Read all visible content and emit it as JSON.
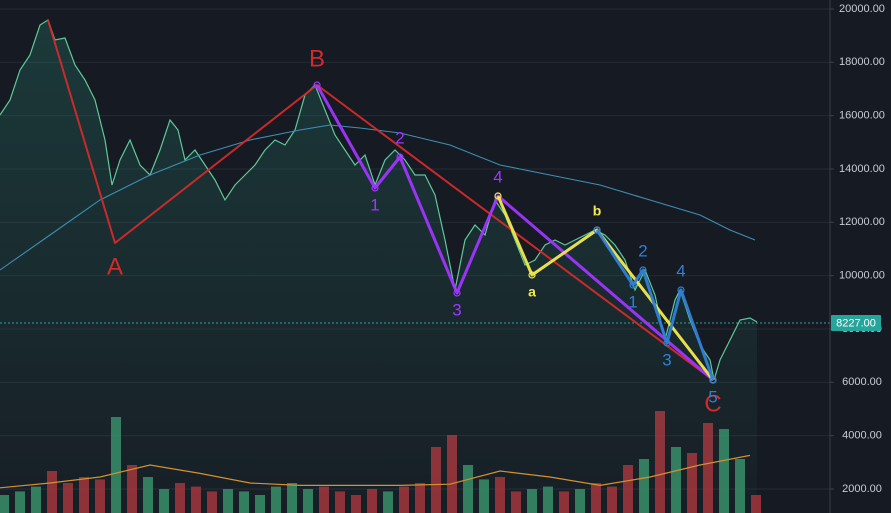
{
  "chart_data": {
    "type": "line",
    "xlim": [
      0,
      830
    ],
    "ylim": [
      2000,
      20000
    ],
    "yticks": [
      {
        "value": 2000,
        "label": "2000.00"
      },
      {
        "value": 4000,
        "label": "4000.00"
      },
      {
        "value": 6000,
        "label": "6000.00"
      },
      {
        "value": 8000,
        "label": "8000.00"
      },
      {
        "value": 10000,
        "label": "10000.00"
      },
      {
        "value": 12000,
        "label": "12000.00"
      },
      {
        "value": 14000,
        "label": "14000.00"
      },
      {
        "value": 16000,
        "label": "16000.00"
      },
      {
        "value": 18000,
        "label": "18000.00"
      },
      {
        "value": 20000,
        "label": "20000.00"
      }
    ],
    "grid": true,
    "last_price": {
      "value": 8227,
      "label": "8227.00",
      "color": "#26a69a"
    },
    "series": [
      {
        "color": "#5fc79a",
        "x": [
          0,
          10,
          20,
          30,
          40,
          48,
          55,
          65,
          75,
          85,
          95,
          105,
          112,
          120,
          130,
          140,
          150,
          160,
          170,
          178,
          185,
          195,
          205,
          215,
          225,
          235,
          245,
          255,
          265,
          275,
          285,
          295,
          305,
          315,
          325,
          335,
          345,
          355,
          365,
          375,
          385,
          395,
          405,
          415,
          425,
          435,
          445,
          455,
          465,
          475,
          485,
          495,
          505,
          515,
          525,
          535,
          545,
          555,
          565,
          575,
          585,
          595,
          605,
          615,
          625,
          635,
          645,
          655,
          665,
          675,
          680,
          690,
          700,
          710,
          714,
          720,
          730,
          740,
          750,
          757
        ],
        "values": [
          16025,
          16588,
          17713,
          18275,
          19400,
          19588,
          18838,
          18913,
          17900,
          17338,
          16588,
          15088,
          13400,
          14338,
          15088,
          14150,
          13775,
          14713,
          15838,
          15463,
          14338,
          14713,
          14150,
          13588,
          12838,
          13400,
          13775,
          14150,
          14713,
          15088,
          14900,
          15463,
          16775,
          17150,
          16213,
          15275,
          14713,
          14150,
          14525,
          13400,
          14338,
          14713,
          14338,
          13775,
          13775,
          13025,
          11338,
          9463,
          11338,
          11900,
          11525,
          12838,
          12275,
          11338,
          10400,
          10588,
          11150,
          11338,
          11150,
          11338,
          11525,
          11713,
          11525,
          11150,
          10588,
          9463,
          10213,
          9275,
          7588,
          9088,
          9463,
          8338,
          7400,
          6838,
          6088,
          6838,
          7588,
          8338,
          8413,
          8263
        ]
      },
      {
        "color": "#3d8fb5",
        "x": [
          0,
          50,
          100,
          150,
          200,
          250,
          300,
          330,
          360,
          400,
          450,
          500,
          550,
          600,
          650,
          700,
          730,
          755
        ],
        "values": [
          10213,
          11525,
          12838,
          13775,
          14525,
          15088,
          15463,
          15650,
          15538,
          15350,
          14900,
          14150,
          13775,
          13400,
          12838,
          12275,
          11713,
          11338
        ]
      }
    ],
    "waves": [
      {
        "color": "#d42a2a",
        "x": [
          48,
          115,
          317,
          713
        ],
        "values": [
          19588,
          11225,
          17150,
          6088
        ],
        "labels": [
          null,
          "A",
          "B",
          "C"
        ]
      },
      {
        "color": "#a035ff",
        "x": [
          317,
          375,
          400,
          457,
          498,
          713
        ],
        "values": [
          17150,
          13288,
          14450,
          9350,
          12988,
          6088
        ],
        "labels": [
          null,
          "1",
          "2",
          "3",
          "4",
          null
        ]
      },
      {
        "color": "#f2e94e",
        "x": [
          498,
          532,
          597,
          713
        ],
        "values": [
          12988,
          10025,
          11713,
          6088
        ],
        "labels": [
          null,
          "a",
          "b",
          null
        ]
      },
      {
        "color": "#2f7fd6",
        "x": [
          597,
          633,
          643,
          667,
          681,
          713
        ],
        "values": [
          11713,
          9650,
          10213,
          7475,
          9463,
          6088
        ],
        "labels": [
          null,
          "1",
          "2",
          "3",
          "4",
          "5"
        ]
      }
    ],
    "volume": {
      "ylim": [
        0,
        100
      ],
      "x": [
        4,
        20,
        36,
        52,
        68,
        84,
        100,
        116,
        132,
        148,
        164,
        180,
        196,
        212,
        228,
        244,
        260,
        276,
        292,
        308,
        324,
        340,
        356,
        372,
        388,
        404,
        420,
        436,
        452,
        468,
        484,
        500,
        516,
        532,
        548,
        564,
        580,
        596,
        612,
        628,
        644,
        660,
        676,
        692,
        708,
        724,
        740,
        756
      ],
      "values": [
        15,
        18,
        22,
        35,
        25,
        30,
        28,
        80,
        40,
        30,
        20,
        25,
        22,
        18,
        20,
        18,
        15,
        22,
        25,
        20,
        22,
        18,
        15,
        20,
        18,
        22,
        25,
        55,
        65,
        40,
        28,
        30,
        18,
        20,
        22,
        18,
        20,
        25,
        22,
        40,
        45,
        85,
        55,
        50,
        75,
        70,
        45,
        15
      ],
      "up_color": "#3a8f6a",
      "down_color": "#a8323a",
      "ma_color": "#e0902a",
      "ma_x": [
        0,
        50,
        100,
        150,
        200,
        250,
        300,
        350,
        400,
        450,
        500,
        550,
        600,
        650,
        700,
        750
      ],
      "ma_values": [
        21,
        25,
        30,
        40,
        33,
        25,
        23,
        23,
        23,
        24,
        35,
        30,
        23,
        30,
        40,
        48
      ]
    }
  }
}
